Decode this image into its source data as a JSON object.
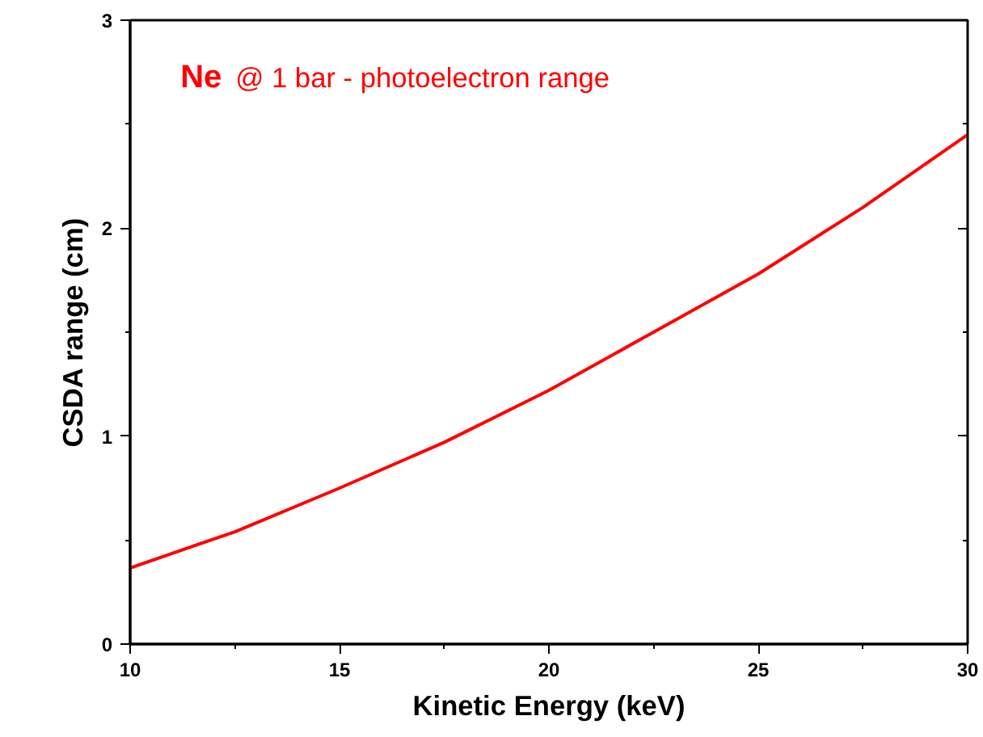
{
  "chart_data": {
    "type": "line",
    "title": "Ne @ 1 bar -  photoelectron range",
    "xlabel": "Kinetic Energy (keV)",
    "ylabel": "CSDA range (cm)",
    "x": [
      10,
      12.5,
      15,
      17.5,
      20,
      22.5,
      25,
      27.5,
      30
    ],
    "series": [
      {
        "color": "#ff0000",
        "values": [
          0.366,
          0.54,
          0.75,
          0.97,
          1.22,
          1.5,
          1.78,
          2.1,
          2.45
        ]
      }
    ],
    "xlim": [
      10,
      30
    ],
    "ylim": [
      0,
      3
    ],
    "xticks": [
      10,
      15,
      20,
      25,
      30
    ],
    "yticks": [
      0,
      1,
      2,
      3
    ],
    "grid": false,
    "marker": "none",
    "line_style": "solid"
  }
}
